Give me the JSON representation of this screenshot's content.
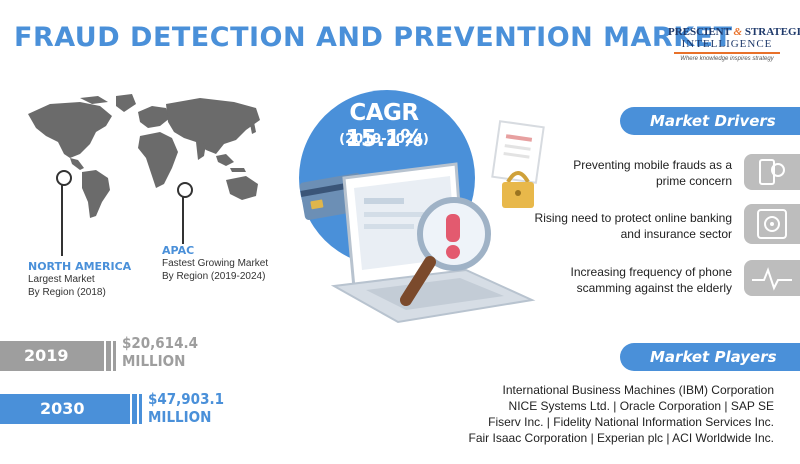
{
  "title": "FRAUD DETECTION AND PREVENTION MARKET",
  "logo": {
    "line1_a": "PRESCIENT",
    "line1_amp": "&",
    "line1_b": "STRATEGIC",
    "line2": "INTELLIGENCE",
    "tagline": "Where knowledge inspires strategy"
  },
  "regions": {
    "north_america": {
      "name": "NORTH AMERICA",
      "desc1": "Largest Market",
      "desc2": "By Region (2018)"
    },
    "apac": {
      "name": "APAC",
      "desc1": "Fastest Growing Market",
      "desc2": "By Region (2019-2024)"
    }
  },
  "market_size": [
    {
      "year": "2019",
      "value": "$20,614.4",
      "unit": "MILLION",
      "color": "#9e9e9e"
    },
    {
      "year": "2030",
      "value": "$47,903.1",
      "unit": "MILLION",
      "color": "#4a90d9"
    }
  ],
  "cagr": {
    "title": "CAGR 15.1%",
    "period": "(2019-2024)"
  },
  "drivers": {
    "heading": "Market Drivers",
    "items": [
      {
        "line1": "Preventing mobile frauds as a",
        "line2": "prime concern",
        "icon": "mobile-icon"
      },
      {
        "line1": "Rising need to protect online banking",
        "line2": "and insurance sector",
        "icon": "safe-icon"
      },
      {
        "line1": "Increasing frequency of phone",
        "line2": "scamming against the elderly",
        "icon": "pulse-icon"
      }
    ]
  },
  "players": {
    "heading": "Market Players",
    "lines": [
      "International Business Machines (IBM) Corporation",
      "NICE Systems Ltd. | Oracle Corporation | SAP SE",
      "Fiserv Inc. | Fidelity National Information Services Inc.",
      "Fair Isaac Corporation | Experian plc |   ACI Worldwide Inc."
    ]
  },
  "colors": {
    "accent": "#4a90d9",
    "gray": "#9e9e9e",
    "map": "#6b6b6b"
  }
}
